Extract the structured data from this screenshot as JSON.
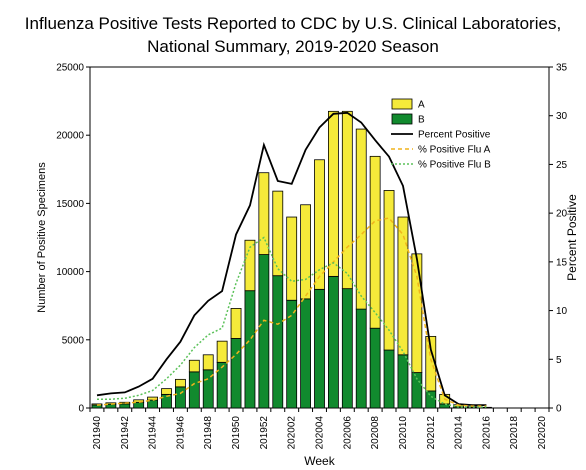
{
  "chart_data": {
    "type": "bar",
    "title": [
      "Influenza Positive Tests Reported to CDC by U.S. Clinical Laboratories,",
      "National Summary, 2019-2020 Season"
    ],
    "xlabel": "Week",
    "ylabel": "Number of Positive Specimens",
    "y2label": "Percent Positive",
    "ylim": [
      0,
      25000
    ],
    "y2lim": [
      0,
      35
    ],
    "yticks": [
      "0",
      "5000",
      "10000",
      "15000",
      "20000",
      "25000"
    ],
    "y2ticks": [
      "0",
      "5",
      "10",
      "15",
      "20",
      "25",
      "30",
      "35"
    ],
    "categories": [
      "201940",
      "201941",
      "201942",
      "201943",
      "201944",
      "201945",
      "201946",
      "201947",
      "201948",
      "201949",
      "201950",
      "201951",
      "201952",
      "202001",
      "202002",
      "202003",
      "202004",
      "202005",
      "202006",
      "202007",
      "202008",
      "202009",
      "202010",
      "202011",
      "202012",
      "202013",
      "202014",
      "202015",
      "202016",
      "202017",
      "202018",
      "202019",
      "202020"
    ],
    "xtick_labels": [
      "201940",
      "201942",
      "201944",
      "201946",
      "201948",
      "201950",
      "201952",
      "202002",
      "202004",
      "202006",
      "202008",
      "202010",
      "202012",
      "202014",
      "202016",
      "202018",
      "202020"
    ],
    "series": [
      {
        "name": "A",
        "kind": "bar",
        "color": "#f5ea3a",
        "values": [
          80,
          100,
          120,
          180,
          220,
          420,
          550,
          850,
          1100,
          1550,
          2200,
          3700,
          6000,
          6200,
          6100,
          6900,
          9500,
          12100,
          13000,
          13200,
          12600,
          11700,
          10100,
          8700,
          4000,
          700,
          150,
          60,
          30,
          0,
          0,
          0,
          0
        ]
      },
      {
        "name": "B",
        "kind": "bar",
        "color": "#118a2e",
        "values": [
          220,
          280,
          300,
          420,
          580,
          1000,
          1550,
          2650,
          2800,
          3350,
          5100,
          8600,
          11250,
          9700,
          7900,
          8000,
          8700,
          9650,
          8750,
          7250,
          5850,
          4250,
          3900,
          2600,
          1250,
          300,
          90,
          40,
          20,
          0,
          0,
          0,
          0
        ]
      },
      {
        "name": "Percent Positive",
        "kind": "line",
        "color": "#000000",
        "values": [
          1.3,
          1.5,
          1.6,
          2.2,
          3.0,
          5.0,
          6.8,
          9.5,
          11.0,
          12.0,
          17.8,
          20.8,
          27.0,
          23.3,
          23.0,
          26.5,
          28.8,
          30.2,
          30.3,
          29.3,
          27.5,
          25.8,
          22.8,
          15.3,
          6.0,
          1.3,
          0.4,
          0.3,
          0.3,
          null,
          null,
          null,
          null
        ]
      },
      {
        "name": "% Positive Flu A",
        "kind": "line",
        "color": "#f0b41c",
        "dash": "4,3",
        "values": [
          0.3,
          0.4,
          0.5,
          0.6,
          0.8,
          1.2,
          1.5,
          2.5,
          3.0,
          4.2,
          5.5,
          7.0,
          9.0,
          8.6,
          9.5,
          11.5,
          13.5,
          15.0,
          16.5,
          17.8,
          19.2,
          19.5,
          17.8,
          13.5,
          5.0,
          0.9,
          0.3,
          0.2,
          0.2,
          null,
          null,
          null,
          null
        ]
      },
      {
        "name": "% Positive Flu B",
        "kind": "line",
        "color": "#5cc25a",
        "dash": "2,2",
        "values": [
          0.9,
          0.9,
          1.0,
          1.3,
          1.8,
          3.0,
          4.4,
          6.2,
          7.5,
          8.2,
          12.8,
          16.5,
          17.5,
          14.3,
          13.0,
          13.2,
          14.2,
          14.9,
          13.8,
          11.5,
          9.8,
          8.0,
          5.8,
          3.0,
          1.2,
          0.4,
          0.1,
          0.1,
          0.1,
          null,
          null,
          null,
          null
        ]
      }
    ],
    "legend": {
      "placement": "top-right"
    }
  }
}
